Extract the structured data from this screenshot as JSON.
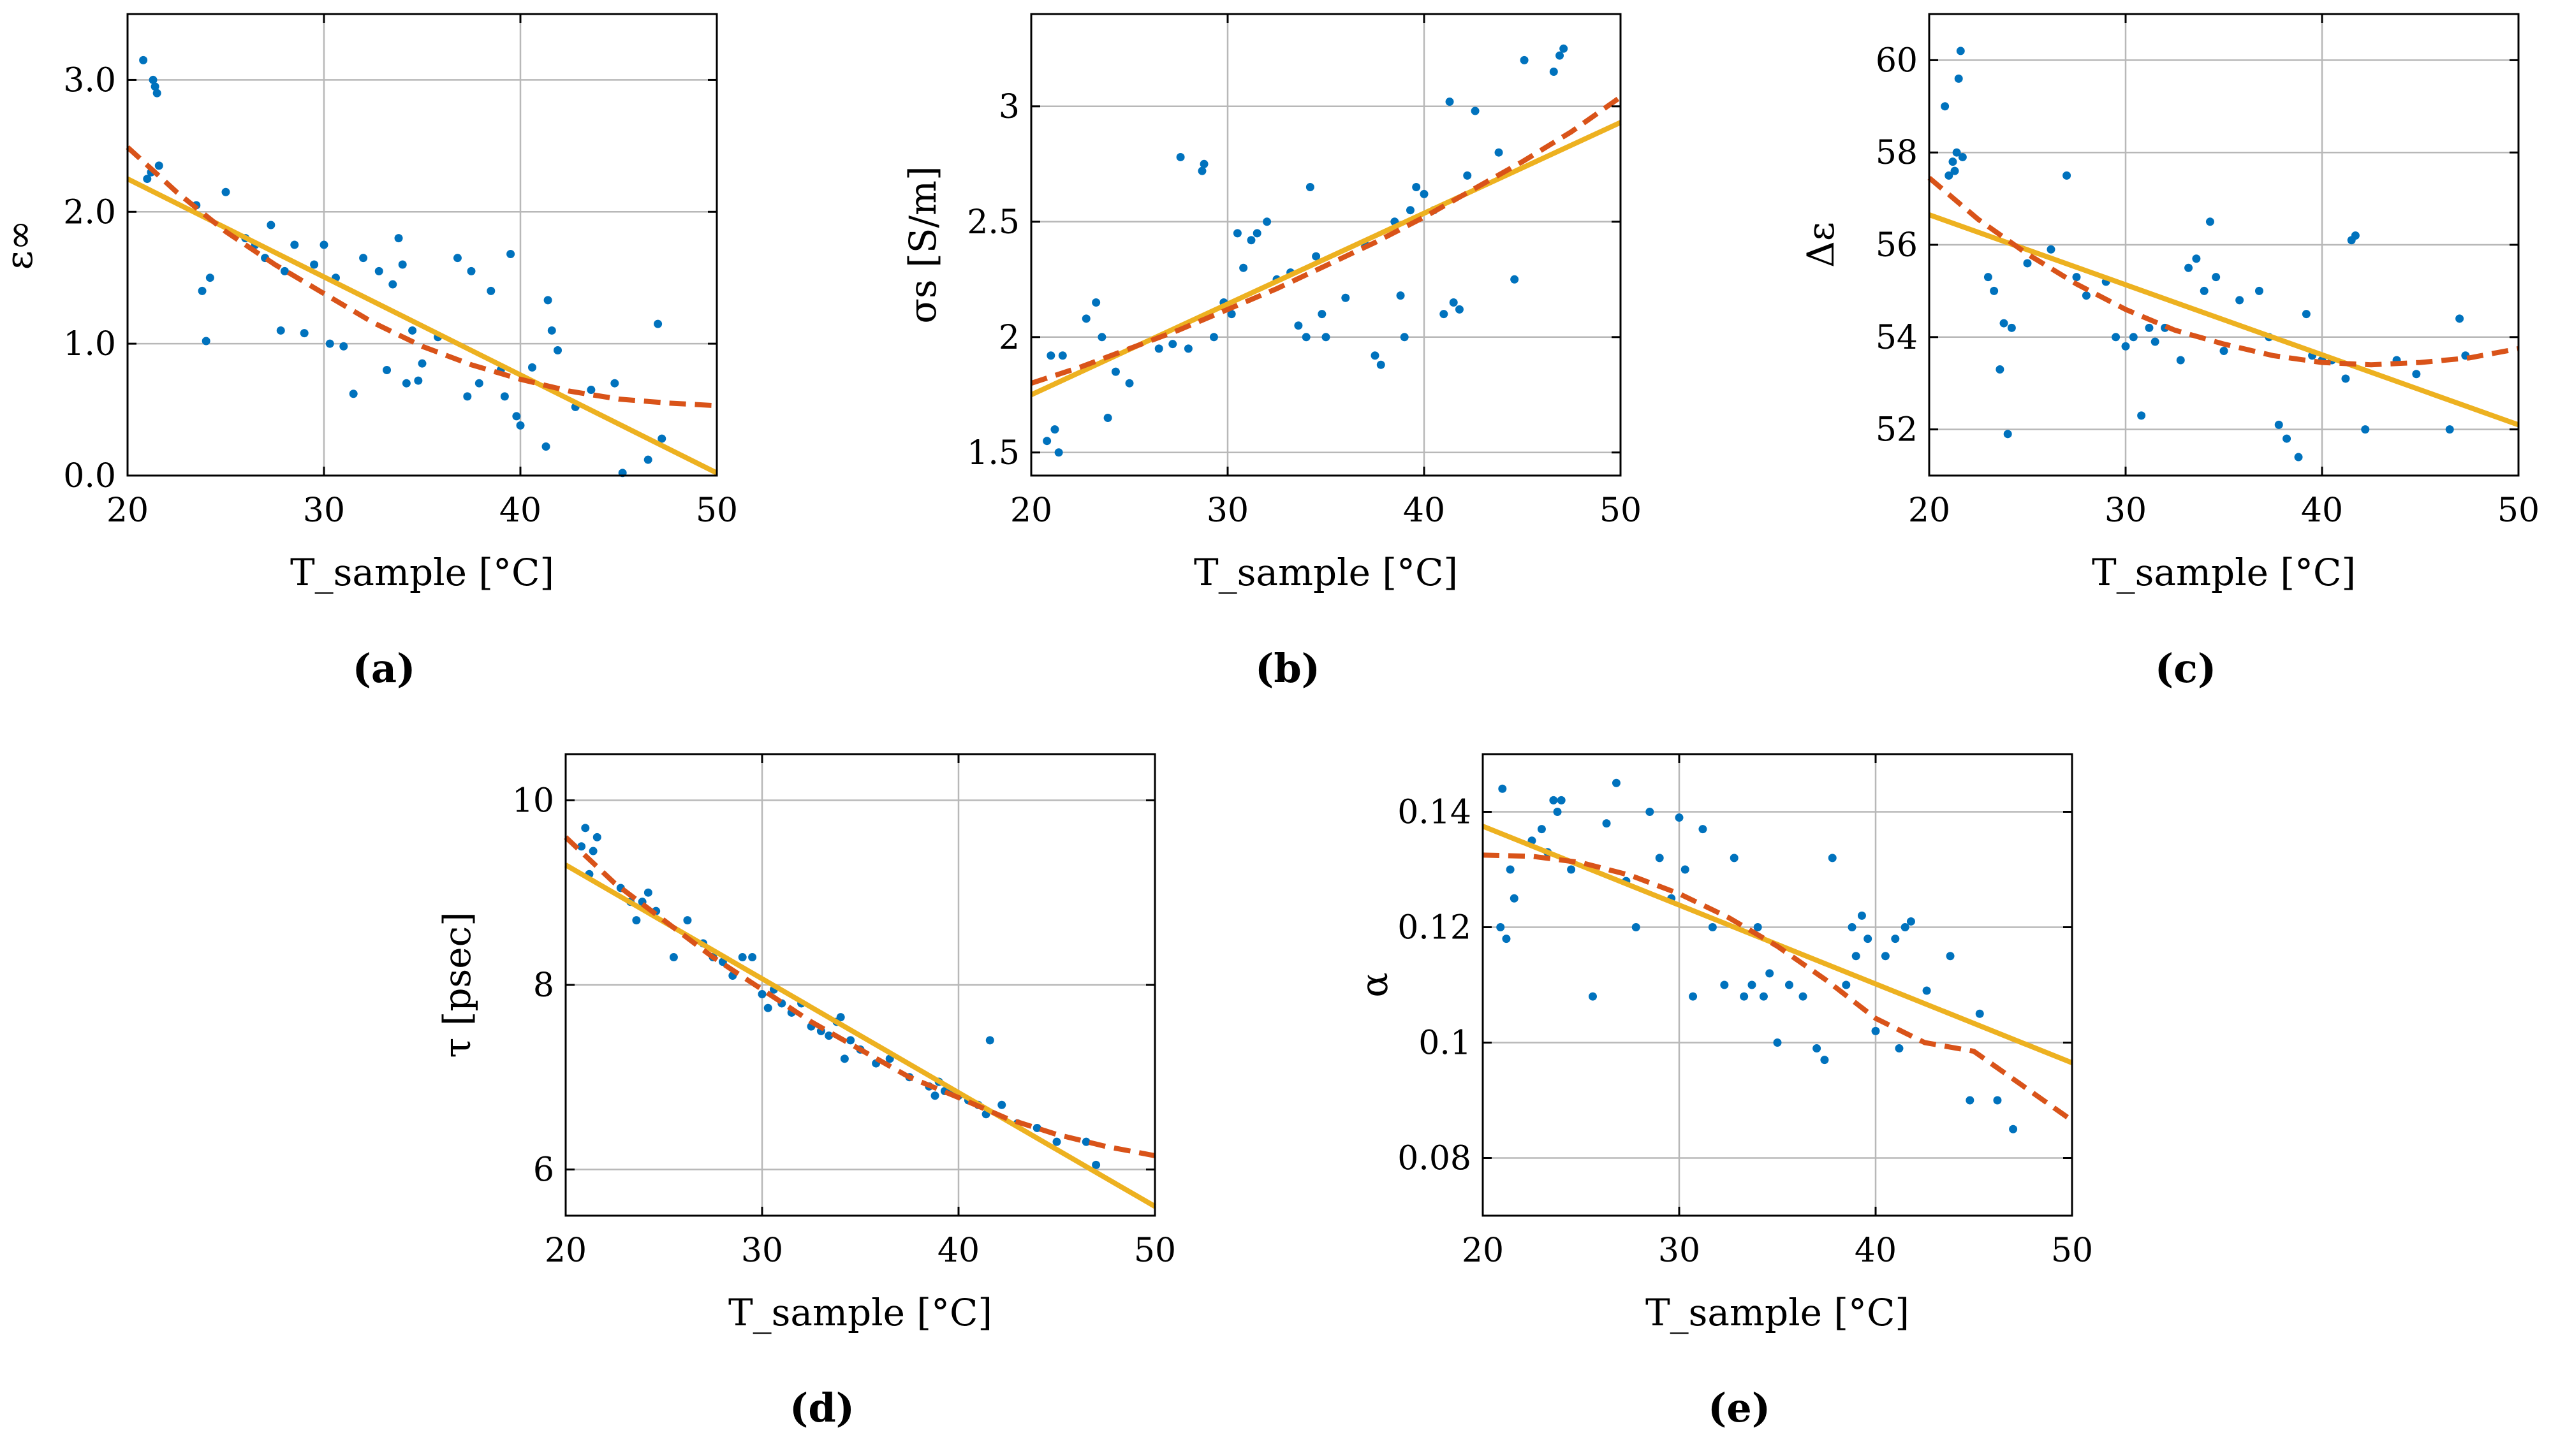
{
  "colors": {
    "points": "#0072bd",
    "linear_fit": "#edb120",
    "quadratic_fit": "#d95319",
    "grid": "#b8b8b8"
  },
  "chart_data": [
    {
      "id": "a",
      "panel_label": "(a)",
      "type": "scatter",
      "title": "",
      "xlabel": "T_sample [°C]",
      "ylabel": "ε∞",
      "xlim": [
        20,
        50
      ],
      "ylim": [
        0,
        3.5
      ],
      "xticks": [
        20,
        30,
        40,
        50
      ],
      "xtick_labels": [
        "20",
        "30",
        "40",
        "50"
      ],
      "yticks": [
        0,
        1,
        2,
        3
      ],
      "ytick_labels": [
        "0.0",
        "1.0",
        "2.0",
        "3.0"
      ],
      "grid": true,
      "x": [
        20.8,
        21.0,
        21.2,
        21.3,
        21.4,
        21.5,
        21.6,
        23.5,
        23.8,
        24.0,
        24.2,
        25.0,
        26.0,
        26.5,
        27.0,
        27.3,
        27.8,
        28.0,
        28.5,
        29.0,
        29.5,
        30.0,
        30.3,
        30.6,
        31.0,
        31.5,
        32.0,
        32.8,
        33.2,
        33.5,
        33.8,
        34.0,
        34.2,
        34.5,
        34.8,
        35.0,
        35.8,
        36.8,
        37.3,
        37.5,
        37.9,
        38.5,
        39.0,
        39.2,
        39.5,
        39.8,
        40.0,
        40.6,
        41.3,
        41.4,
        41.6,
        41.9,
        42.8,
        43.6,
        44.8,
        45.2,
        46.5,
        47.0,
        47.2
      ],
      "y": [
        3.15,
        2.25,
        2.3,
        3.0,
        2.95,
        2.9,
        2.35,
        2.05,
        1.4,
        1.02,
        1.5,
        2.15,
        1.8,
        1.75,
        1.65,
        1.9,
        1.1,
        1.55,
        1.75,
        1.08,
        1.6,
        1.75,
        1.0,
        1.5,
        0.98,
        0.62,
        1.65,
        1.55,
        0.8,
        1.45,
        1.8,
        1.6,
        0.7,
        1.1,
        0.72,
        0.85,
        1.05,
        1.65,
        0.6,
        1.55,
        0.7,
        1.4,
        0.8,
        0.6,
        1.68,
        0.45,
        0.38,
        0.82,
        0.22,
        1.33,
        1.1,
        0.95,
        0.52,
        0.65,
        0.7,
        0.02,
        0.12,
        1.15,
        0.28
      ],
      "series": [
        {
          "name": "linear fit",
          "x": [
            20,
            50
          ],
          "y": [
            2.25,
            0.02
          ]
        },
        {
          "name": "quadratic fit",
          "x": [
            20,
            22.5,
            25,
            27.5,
            30,
            32.5,
            35,
            37.5,
            40,
            42.5,
            45,
            47.5,
            50
          ],
          "y": [
            2.49,
            2.15,
            1.85,
            1.6,
            1.38,
            1.16,
            0.98,
            0.84,
            0.73,
            0.64,
            0.58,
            0.55,
            0.53
          ]
        }
      ]
    },
    {
      "id": "b",
      "panel_label": "(b)",
      "type": "scatter",
      "title": "",
      "xlabel": "T_sample [°C]",
      "ylabel": "σs [S/m]",
      "xlim": [
        20,
        50
      ],
      "ylim": [
        1.4,
        3.4
      ],
      "xticks": [
        20,
        30,
        40,
        50
      ],
      "xtick_labels": [
        "20",
        "30",
        "40",
        "50"
      ],
      "yticks": [
        1.5,
        2,
        2.5,
        3
      ],
      "ytick_labels": [
        "1.5",
        "2",
        "2.5",
        "3"
      ],
      "grid": true,
      "x": [
        20.8,
        21.0,
        21.2,
        21.4,
        21.6,
        22.8,
        23.3,
        23.6,
        23.9,
        24.3,
        25.0,
        26.5,
        27.2,
        27.6,
        28.0,
        28.7,
        28.8,
        29.3,
        29.8,
        30.2,
        30.5,
        30.8,
        31.2,
        31.5,
        32.0,
        32.5,
        33.2,
        33.6,
        34.0,
        34.2,
        34.5,
        34.8,
        35.0,
        36.0,
        37.0,
        37.5,
        37.8,
        38.5,
        38.8,
        39.0,
        39.3,
        39.6,
        40.0,
        40.5,
        41.0,
        41.3,
        41.5,
        41.8,
        42.2,
        42.6,
        43.8,
        44.6,
        45.1,
        46.6,
        46.9,
        47.1
      ],
      "y": [
        1.55,
        1.92,
        1.6,
        1.5,
        1.92,
        2.08,
        2.15,
        2.0,
        1.65,
        1.85,
        1.8,
        1.95,
        1.97,
        2.78,
        1.95,
        2.72,
        2.75,
        2.0,
        2.15,
        2.1,
        2.45,
        2.3,
        2.42,
        2.45,
        2.5,
        2.25,
        2.28,
        2.05,
        2.0,
        2.65,
        2.35,
        2.1,
        2.0,
        2.17,
        2.4,
        1.92,
        1.88,
        2.5,
        2.18,
        2.0,
        2.55,
        2.65,
        2.62,
        2.55,
        2.1,
        3.02,
        2.15,
        2.12,
        2.7,
        2.98,
        2.8,
        2.25,
        3.2,
        3.15,
        3.22,
        3.25
      ],
      "series": [
        {
          "name": "linear fit",
          "x": [
            20,
            50
          ],
          "y": [
            1.75,
            2.93
          ]
        },
        {
          "name": "quadratic fit",
          "x": [
            20,
            22.5,
            25,
            27.5,
            30,
            32.5,
            35,
            37.5,
            40,
            42.5,
            45,
            47.5,
            50
          ],
          "y": [
            1.8,
            1.87,
            1.95,
            2.03,
            2.12,
            2.21,
            2.31,
            2.41,
            2.52,
            2.64,
            2.76,
            2.89,
            3.04
          ]
        }
      ]
    },
    {
      "id": "c",
      "panel_label": "(c)",
      "type": "scatter",
      "title": "",
      "xlabel": "T_sample [°C]",
      "ylabel": "Δε",
      "xlim": [
        20,
        50
      ],
      "ylim": [
        51,
        61
      ],
      "xticks": [
        20,
        30,
        40,
        50
      ],
      "xtick_labels": [
        "20",
        "30",
        "40",
        "50"
      ],
      "yticks": [
        52,
        54,
        56,
        58,
        60
      ],
      "ytick_labels": [
        "52",
        "54",
        "56",
        "58",
        "60"
      ],
      "grid": true,
      "x": [
        20.8,
        21.0,
        21.2,
        21.3,
        21.4,
        21.5,
        21.6,
        21.7,
        23.0,
        23.3,
        23.6,
        23.8,
        24.0,
        24.2,
        25.0,
        26.2,
        27.0,
        27.5,
        28.0,
        29.0,
        29.5,
        30.0,
        30.4,
        30.8,
        31.2,
        31.5,
        32.0,
        32.8,
        33.2,
        33.6,
        34.0,
        34.3,
        34.6,
        35.0,
        35.8,
        36.8,
        37.3,
        37.8,
        38.2,
        38.8,
        39.2,
        39.5,
        40.0,
        40.5,
        41.2,
        41.5,
        41.7,
        42.2,
        43.8,
        44.8,
        46.5,
        47.0,
        47.3
      ],
      "y": [
        59.0,
        57.5,
        57.8,
        57.6,
        58.0,
        59.6,
        60.2,
        57.9,
        55.3,
        55.0,
        53.3,
        54.3,
        51.9,
        54.2,
        55.6,
        55.9,
        57.5,
        55.3,
        54.9,
        55.2,
        54.0,
        53.8,
        54.0,
        52.3,
        54.2,
        53.9,
        54.2,
        53.5,
        55.5,
        55.7,
        55.0,
        56.5,
        55.3,
        53.7,
        54.8,
        55.0,
        54.0,
        52.1,
        51.8,
        51.4,
        54.5,
        53.6,
        53.5,
        53.5,
        53.1,
        56.1,
        56.2,
        52.0,
        53.5,
        53.2,
        52.0,
        54.4,
        53.6
      ],
      "series": [
        {
          "name": "linear fit",
          "x": [
            20,
            50
          ],
          "y": [
            56.65,
            52.1
          ]
        },
        {
          "name": "quadratic fit",
          "x": [
            20,
            22.5,
            25,
            27.5,
            30,
            32.5,
            35,
            37.5,
            40,
            42.5,
            45,
            47.5,
            50
          ],
          "y": [
            57.45,
            56.55,
            55.8,
            55.15,
            54.6,
            54.15,
            53.85,
            53.6,
            53.45,
            53.4,
            53.45,
            53.55,
            53.75
          ]
        }
      ]
    },
    {
      "id": "d",
      "panel_label": "(d)",
      "type": "scatter",
      "title": "",
      "xlabel": "T_sample [°C]",
      "ylabel": "τ [psec]",
      "xlim": [
        20,
        50
      ],
      "ylim": [
        5.5,
        10.5
      ],
      "xticks": [
        20,
        30,
        40,
        50
      ],
      "xtick_labels": [
        "20",
        "30",
        "40",
        "50"
      ],
      "yticks": [
        6,
        8,
        10
      ],
      "ytick_labels": [
        "6",
        "8",
        "10"
      ],
      "grid": true,
      "x": [
        20.8,
        21.0,
        21.2,
        21.4,
        21.6,
        22.8,
        23.3,
        23.6,
        23.9,
        24.2,
        24.6,
        25.5,
        26.2,
        27.0,
        27.5,
        28.0,
        28.5,
        29.0,
        29.5,
        30.0,
        30.3,
        30.6,
        31.0,
        31.5,
        32.0,
        32.5,
        33.0,
        33.4,
        33.8,
        34.0,
        34.2,
        34.5,
        35.0,
        35.8,
        36.5,
        37.5,
        38.5,
        38.8,
        39.0,
        39.3,
        39.6,
        40.0,
        40.5,
        41.0,
        41.4,
        41.6,
        42.2,
        43.0,
        44.0,
        45.0,
        46.5,
        47.0
      ],
      "y": [
        9.5,
        9.7,
        9.2,
        9.45,
        9.6,
        9.05,
        8.9,
        8.7,
        8.9,
        9.0,
        8.8,
        8.3,
        8.7,
        8.45,
        8.3,
        8.25,
        8.1,
        8.3,
        8.3,
        7.9,
        7.75,
        7.95,
        7.8,
        7.7,
        7.8,
        7.55,
        7.5,
        7.45,
        7.6,
        7.65,
        7.2,
        7.4,
        7.3,
        7.15,
        7.2,
        7.0,
        6.9,
        6.8,
        6.95,
        6.85,
        6.85,
        6.8,
        6.75,
        6.7,
        6.6,
        7.4,
        6.7,
        6.5,
        6.45,
        6.3,
        6.3,
        6.05
      ],
      "series": [
        {
          "name": "linear fit",
          "x": [
            20,
            50
          ],
          "y": [
            9.3,
            5.6
          ]
        },
        {
          "name": "quadratic fit",
          "x": [
            20,
            22.5,
            25,
            27.5,
            30,
            32.5,
            35,
            37.5,
            40,
            42.5,
            45,
            47.5,
            50
          ],
          "y": [
            9.6,
            9.1,
            8.7,
            8.3,
            7.95,
            7.6,
            7.3,
            7.0,
            6.78,
            6.55,
            6.38,
            6.25,
            6.15
          ]
        }
      ]
    },
    {
      "id": "e",
      "panel_label": "(e)",
      "type": "scatter",
      "title": "",
      "xlabel": "T_sample [°C]",
      "ylabel": "α",
      "xlim": [
        20,
        50
      ],
      "ylim": [
        0.07,
        0.15
      ],
      "xticks": [
        20,
        30,
        40,
        50
      ],
      "xtick_labels": [
        "20",
        "30",
        "40",
        "50"
      ],
      "yticks": [
        0.08,
        0.1,
        0.12,
        0.14
      ],
      "ytick_labels": [
        "0.08",
        "0.1",
        "0.12",
        "0.14"
      ],
      "grid": true,
      "x": [
        20.9,
        21.0,
        21.2,
        21.4,
        21.6,
        22.5,
        23.0,
        23.3,
        23.6,
        23.8,
        24.0,
        24.5,
        25.6,
        26.3,
        26.8,
        27.3,
        27.8,
        28.5,
        29.0,
        29.6,
        30.0,
        30.3,
        30.7,
        31.2,
        31.7,
        32.3,
        32.8,
        33.3,
        33.7,
        34.0,
        34.3,
        34.6,
        35.0,
        35.6,
        36.3,
        37.0,
        37.4,
        37.8,
        38.5,
        38.8,
        39.0,
        39.3,
        39.6,
        40.0,
        40.5,
        41.0,
        41.2,
        41.5,
        41.8,
        42.6,
        43.8,
        44.8,
        45.3,
        46.2,
        47.0
      ],
      "y": [
        0.12,
        0.144,
        0.118,
        0.13,
        0.125,
        0.135,
        0.137,
        0.133,
        0.142,
        0.14,
        0.142,
        0.13,
        0.108,
        0.138,
        0.145,
        0.128,
        0.12,
        0.14,
        0.132,
        0.125,
        0.139,
        0.13,
        0.108,
        0.137,
        0.12,
        0.11,
        0.132,
        0.108,
        0.11,
        0.12,
        0.108,
        0.112,
        0.1,
        0.11,
        0.108,
        0.099,
        0.097,
        0.132,
        0.11,
        0.12,
        0.115,
        0.122,
        0.118,
        0.102,
        0.115,
        0.118,
        0.099,
        0.12,
        0.121,
        0.109,
        0.115,
        0.09,
        0.105,
        0.09,
        0.085
      ],
      "series": [
        {
          "name": "linear fit",
          "x": [
            20,
            50
          ],
          "y": [
            0.1375,
            0.0965
          ]
        },
        {
          "name": "quadratic fit",
          "x": [
            20,
            22.5,
            25,
            27.5,
            30,
            32.5,
            35,
            37.5,
            40,
            42.5,
            45,
            47.5,
            50
          ],
          "y": [
            0.1325,
            0.1323,
            0.1312,
            0.129,
            0.1258,
            0.1217,
            0.1167,
            0.1108,
            0.1042,
            0.1,
            0.0985,
            0.0925,
            0.0865
          ]
        }
      ]
    }
  ]
}
